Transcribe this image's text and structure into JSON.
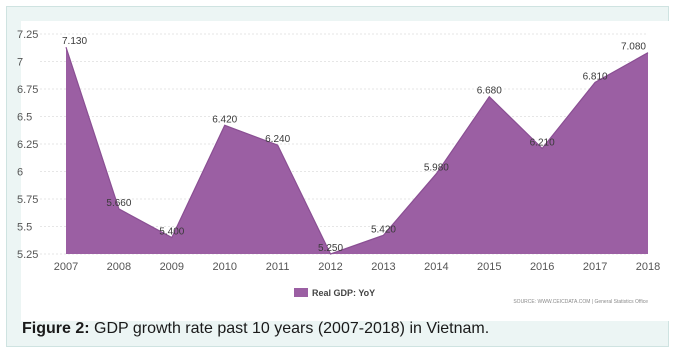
{
  "caption": {
    "label": "Figure 2:",
    "text": " GDP growth rate past 10 years (2007-2018) in Vietnam."
  },
  "source_note": "SOURCE: WWW.CEICDATA.COM | General Statistics Office",
  "chart_data": {
    "type": "area",
    "title": "",
    "xlabel": "",
    "ylabel": "",
    "x": [
      "2007",
      "2008",
      "2009",
      "2010",
      "2011",
      "2012",
      "2013",
      "2014",
      "2015",
      "2016",
      "2017",
      "2018"
    ],
    "series": [
      {
        "name": "Real GDP: YoY",
        "values": [
          7.13,
          5.66,
          5.4,
          6.42,
          6.24,
          5.25,
          5.42,
          5.98,
          6.68,
          6.21,
          6.81,
          7.08
        ],
        "labels": [
          "7.130",
          "5.660",
          "5.400",
          "6.420",
          "6.240",
          "5.250",
          "5.420",
          "5.980",
          "6.680",
          "6.210",
          "6.810",
          "7.080"
        ],
        "color": "#9b5fa3"
      }
    ],
    "yticks": [
      "5.25",
      "5.5",
      "5.75",
      "6",
      "6.25",
      "6.5",
      "6.75",
      "7",
      "7.25"
    ],
    "ylim": [
      5.25,
      7.25
    ],
    "grid": true,
    "legend": "bottom-center",
    "colors": {
      "fill": "#9b5fa3",
      "stroke": "#8a4f93",
      "grid": "#e6e6e6",
      "background": "#ecf5f4"
    }
  }
}
